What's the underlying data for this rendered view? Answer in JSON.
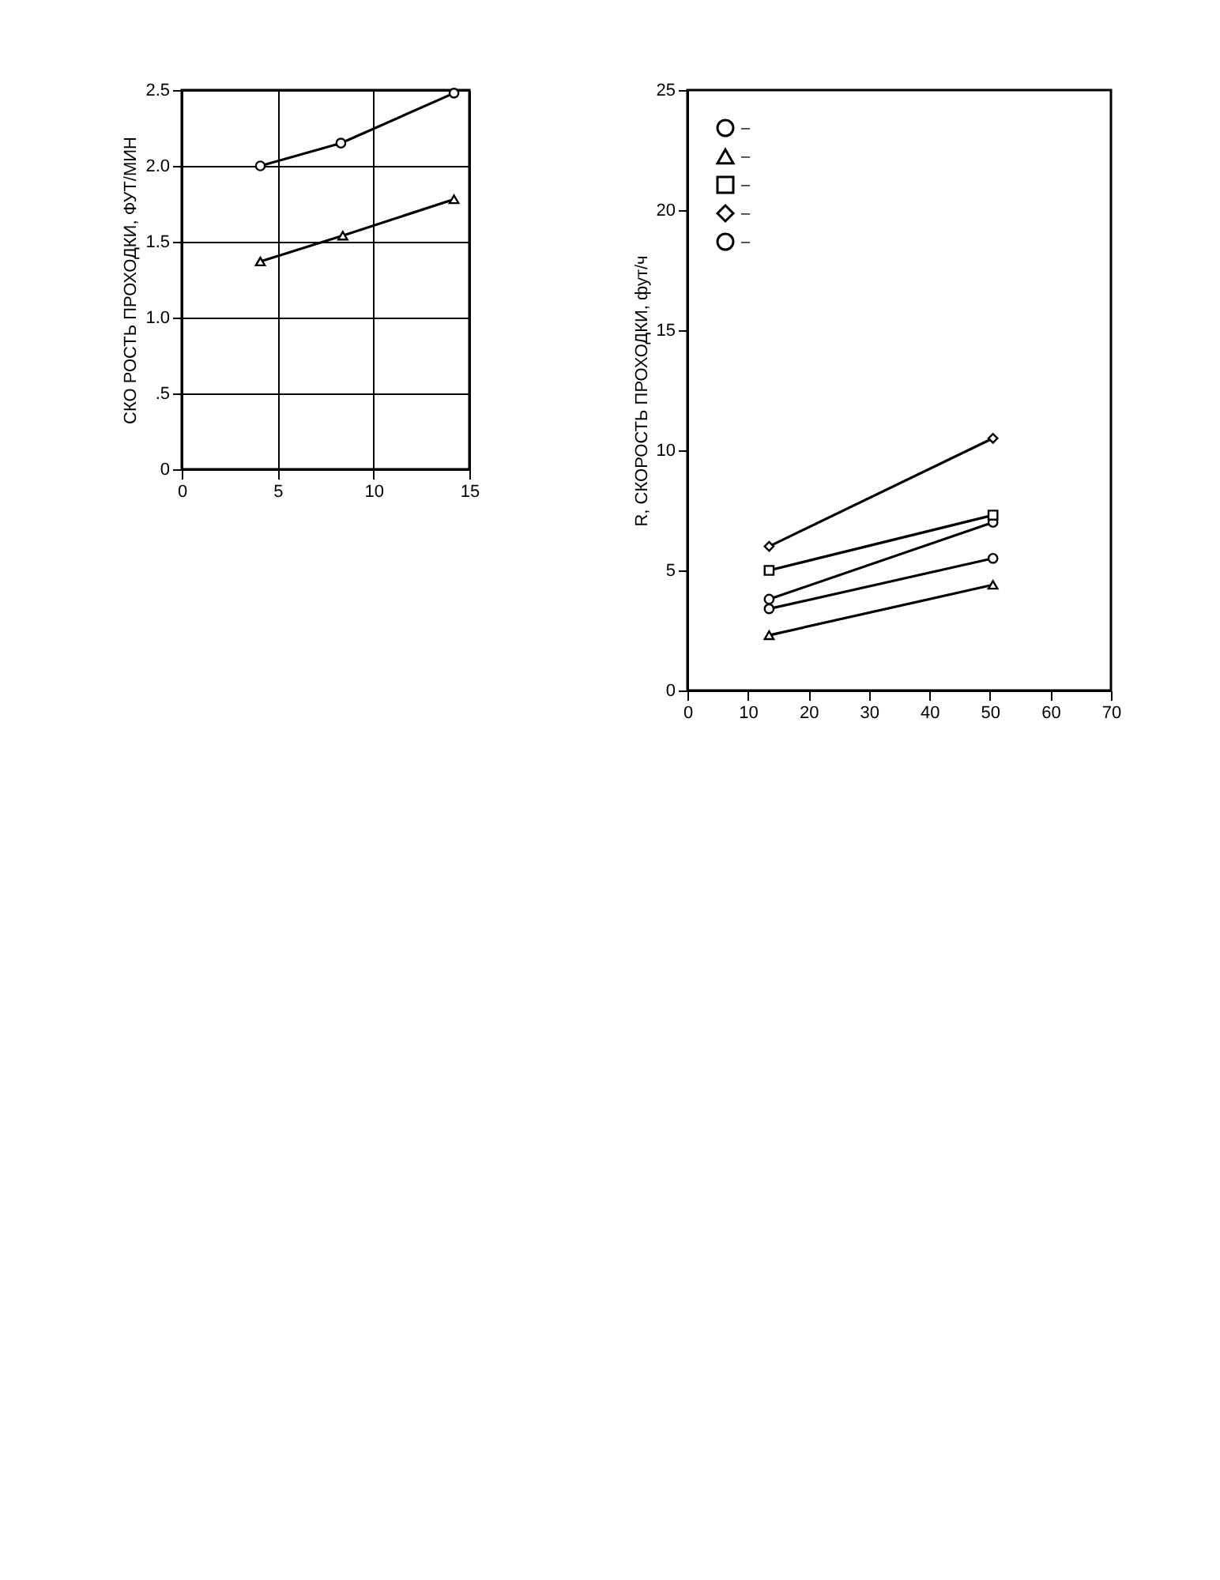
{
  "chart_data": [
    {
      "type": "line",
      "ylabel": "СКО РОСТЬ ПРОХОДКИ, ФУТ/МИН",
      "xlim": [
        0,
        15
      ],
      "xticks": [
        0,
        5,
        10,
        15
      ],
      "ylim": [
        0,
        2.5
      ],
      "yticks": [
        0,
        {
          "value": 0.5,
          "label": ".5"
        },
        {
          "value": 1,
          "label": "1.0"
        },
        {
          "value": 1.5,
          "label": "1.5"
        },
        {
          "value": 2,
          "label": "2.0"
        },
        {
          "value": 2.5,
          "label": "2.5"
        }
      ],
      "grid": true,
      "series": [
        {
          "color": "#000000",
          "marker": "circle",
          "x": [
            4.1,
            8.3,
            14.2
          ],
          "values": [
            2.0,
            2.15,
            2.48
          ]
        },
        {
          "color": "#000000",
          "marker": "triangle",
          "x": [
            4.1,
            8.4,
            14.2
          ],
          "values": [
            1.37,
            1.54,
            1.78
          ]
        }
      ]
    },
    {
      "type": "line",
      "ylabel": "R, СКОРОСТЬ ПРОХОДКИ, фут/ч",
      "xlim": [
        0,
        70
      ],
      "xticks": [
        0,
        10,
        20,
        30,
        40,
        50,
        60,
        70
      ],
      "ylim": [
        0,
        25
      ],
      "yticks": [
        0,
        5,
        10,
        15,
        20,
        25
      ],
      "legend": "top left",
      "series": [
        {
          "name": "–",
          "color": "#000000",
          "marker": "circle",
          "x": [
            13.5,
            50.5
          ],
          "values": [
            3.8,
            7.0
          ]
        },
        {
          "name": "–",
          "color": "#000000",
          "marker": "triangle",
          "x": [
            13.5,
            50.5
          ],
          "values": [
            2.3,
            4.4
          ]
        },
        {
          "name": "–",
          "color": "#000000",
          "marker": "square",
          "x": [
            13.5,
            50.5
          ],
          "values": [
            5.0,
            7.3
          ]
        },
        {
          "name": "–",
          "color": "#000000",
          "marker": "diamond",
          "x": [
            13.5,
            50.5
          ],
          "values": [
            6.0,
            10.5
          ]
        },
        {
          "name": "–",
          "color": "#000000",
          "marker": "circle",
          "x": [
            13.5,
            50.5
          ],
          "values": [
            3.4,
            5.5
          ]
        }
      ]
    }
  ]
}
